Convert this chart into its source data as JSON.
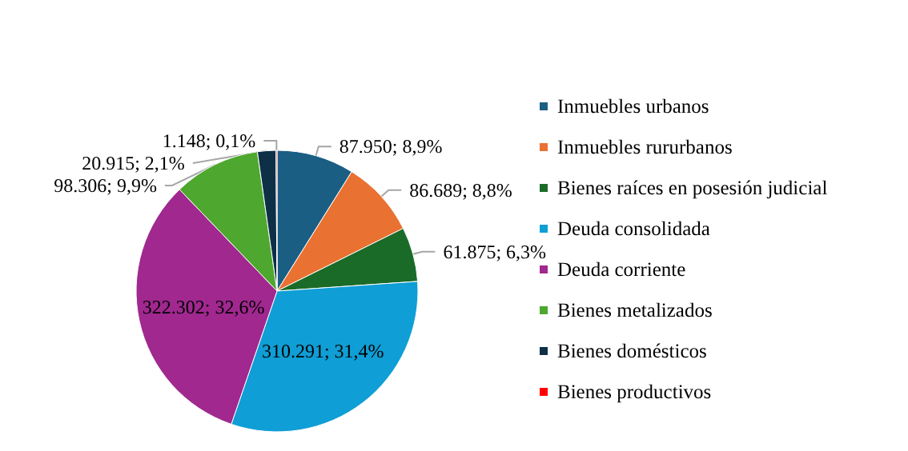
{
  "chart_data": {
    "type": "pie",
    "categories": [
      "Inmuebles urbanos",
      "Inmuebles rururbanos",
      "Bienes raíces en posesión judicial",
      "Deuda consolidada",
      "Deuda corriente",
      "Bienes metalizados",
      "Bienes domésticos",
      "Bienes productivos"
    ],
    "values": [
      87950,
      86689,
      61875,
      310291,
      322302,
      98306,
      20915,
      1148
    ],
    "value_labels": [
      "87.950; 8,9%",
      "86.689; 8,8%",
      "61.875; 6,3%",
      "310.291; 31,4%",
      "322.302; 32,6%",
      "98.306; 9,9%",
      "20.915; 2,1%",
      "1.148; 0,1%"
    ],
    "colors": [
      "#1a5e84",
      "#e97132",
      "#1a6b27",
      "#0f9ed5",
      "#a0288f",
      "#4ea72e",
      "#0e3047",
      "#ff0000"
    ],
    "legend": "right"
  }
}
